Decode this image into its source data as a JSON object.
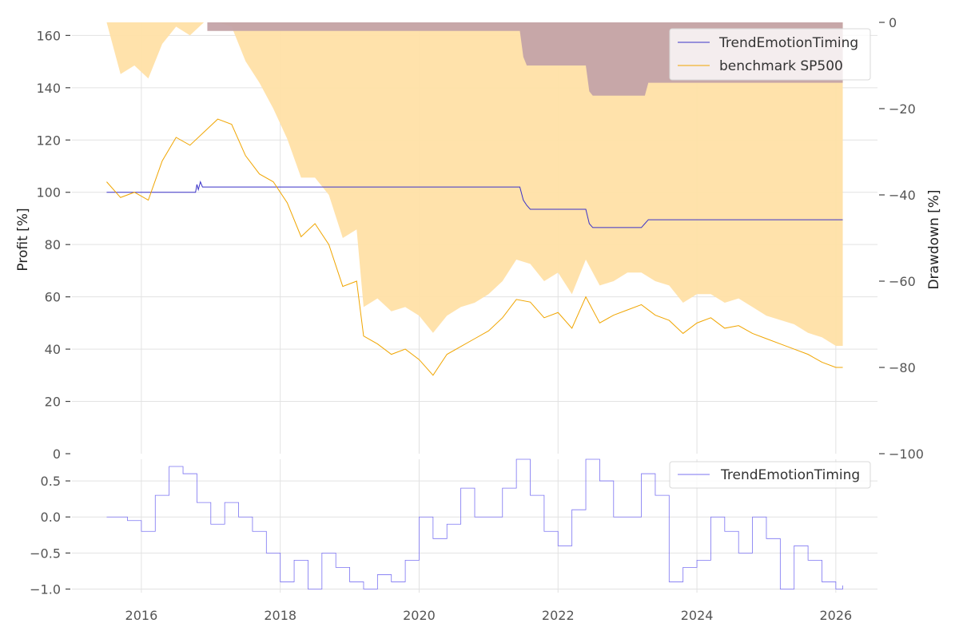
{
  "chart_data": [
    {
      "type": "line",
      "name": "top-panel",
      "xlabel": "",
      "ylabel": "Profit [%]",
      "ylabel_right": "Drawdown [%]",
      "ylim": [
        0,
        165
      ],
      "ylim_right": [
        -100,
        0
      ],
      "xlim": [
        2015.0,
        2026.6
      ],
      "grid": true,
      "legend_position": "top-right",
      "x_ticks": [
        2016,
        2018,
        2020,
        2022,
        2024,
        2026
      ],
      "x_tick_labels": [
        "2016",
        "2018",
        "2020",
        "2022",
        "2024",
        "2026"
      ],
      "y_ticks": [
        0,
        20,
        40,
        60,
        80,
        100,
        120,
        140,
        160
      ],
      "y_tick_labels": [
        "0",
        "20",
        "40",
        "60",
        "80",
        "100",
        "120",
        "140",
        "160"
      ],
      "y_right_ticks": [
        0,
        -20,
        -40,
        -60,
        -80,
        -100
      ],
      "y_right_tick_labels": [
        "0",
        "−20",
        "−40",
        "−60",
        "−80",
        "−100"
      ],
      "series": [
        {
          "name": "TrendEmotionTiming",
          "color": "#3a32c8",
          "x": [
            2015.5,
            2016.78,
            2016.8,
            2016.82,
            2016.85,
            2016.88,
            2021.45,
            2021.5,
            2021.55,
            2021.6,
            2022.4,
            2022.45,
            2022.5,
            2023.2,
            2023.25,
            2023.3,
            2026.1
          ],
          "y": [
            100,
            100,
            103,
            101,
            104,
            102,
            102,
            97,
            95,
            93.5,
            93.5,
            88,
            86.5,
            86.5,
            88,
            89.5,
            89.5
          ]
        },
        {
          "name": "benchmark SP500",
          "color": "#f0a500",
          "x": [
            2015.5,
            2015.7,
            2015.9,
            2016.1,
            2016.3,
            2016.5,
            2016.7,
            2016.9,
            2017.1,
            2017.3,
            2017.5,
            2017.7,
            2017.9,
            2018.1,
            2018.3,
            2018.5,
            2018.7,
            2018.9,
            2019.1,
            2019.2,
            2019.4,
            2019.6,
            2019.8,
            2020.0,
            2020.2,
            2020.4,
            2020.6,
            2020.8,
            2021.0,
            2021.2,
            2021.4,
            2021.6,
            2021.8,
            2022.0,
            2022.2,
            2022.4,
            2022.6,
            2022.8,
            2023.0,
            2023.2,
            2023.4,
            2023.6,
            2023.8,
            2024.0,
            2024.2,
            2024.4,
            2024.6,
            2024.8,
            2025.0,
            2025.2,
            2025.4,
            2025.6,
            2025.8,
            2026.0,
            2026.1
          ],
          "y": [
            104,
            98,
            100,
            97,
            112,
            121,
            118,
            123,
            128,
            126,
            114,
            107,
            104,
            96,
            83,
            88,
            80,
            64,
            66,
            45,
            42,
            38,
            40,
            36,
            30,
            38,
            41,
            44,
            47,
            52,
            59,
            58,
            52,
            54,
            48,
            60,
            50,
            53,
            55,
            57,
            53,
            51,
            46,
            50,
            52,
            48,
            49,
            46,
            44,
            42,
            40,
            38,
            35,
            33,
            33
          ]
        }
      ],
      "drawdown_areas": [
        {
          "name": "benchmark SP500 drawdown",
          "color": "#ffe0a6",
          "x": [
            2015.5,
            2015.7,
            2015.9,
            2016.1,
            2016.3,
            2016.5,
            2016.7,
            2016.9,
            2017.1,
            2017.3,
            2017.5,
            2017.7,
            2017.9,
            2018.1,
            2018.3,
            2018.5,
            2018.7,
            2018.9,
            2019.1,
            2019.2,
            2019.4,
            2019.6,
            2019.8,
            2020.0,
            2020.2,
            2020.4,
            2020.6,
            2020.8,
            2021.0,
            2021.2,
            2021.4,
            2021.6,
            2021.8,
            2022.0,
            2022.2,
            2022.4,
            2022.6,
            2022.8,
            2023.0,
            2023.2,
            2023.4,
            2023.6,
            2023.8,
            2024.0,
            2024.2,
            2024.4,
            2024.6,
            2024.8,
            2025.0,
            2025.2,
            2025.4,
            2025.6,
            2025.8,
            2026.0,
            2026.1
          ],
          "y": [
            0,
            -12,
            -10,
            -13,
            -5,
            -1,
            -3,
            0,
            0,
            -1,
            -9,
            -14,
            -20,
            -27,
            -36,
            -36,
            -40,
            -50,
            -48,
            -66,
            -64,
            -67,
            -66,
            -68,
            -72,
            -68,
            -66,
            -65,
            -63,
            -60,
            -55,
            -56,
            -60,
            -58,
            -63,
            -55,
            -61,
            -60,
            -58,
            -58,
            -60,
            -61,
            -65,
            -63,
            -63,
            -65,
            -64,
            -66,
            -68,
            -69,
            -70,
            -72,
            -73,
            -75,
            -75
          ]
        },
        {
          "name": "TrendEmotionTiming drawdown",
          "color": "#c4a3a8",
          "x": [
            2016.95,
            2021.45,
            2021.5,
            2021.55,
            2022.4,
            2022.45,
            2022.5,
            2023.25,
            2023.3,
            2026.1
          ],
          "y": [
            -2,
            -2,
            -8,
            -10,
            -10,
            -16,
            -17,
            -17,
            -14,
            -14
          ]
        }
      ]
    },
    {
      "type": "line",
      "name": "bottom-panel",
      "xlabel": "",
      "ylabel": "",
      "ylim": [
        -1.05,
        0.8
      ],
      "xlim": [
        2015.0,
        2026.6
      ],
      "grid": true,
      "legend_position": "top-right",
      "x_ticks": [
        2016,
        2018,
        2020,
        2022,
        2024,
        2026
      ],
      "y_ticks": [
        -1.0,
        -0.5,
        0.0,
        0.5
      ],
      "y_tick_labels": [
        "−1.0",
        "−0.5",
        "0.0",
        "0.5"
      ],
      "series": [
        {
          "name": "TrendEmotionTiming",
          "color": "#7b73f2",
          "x": [
            2015.5,
            2015.8,
            2016.0,
            2016.2,
            2016.4,
            2016.6,
            2016.8,
            2017.0,
            2017.2,
            2017.4,
            2017.6,
            2017.8,
            2018.0,
            2018.2,
            2018.4,
            2018.6,
            2018.8,
            2019.0,
            2019.2,
            2019.4,
            2019.6,
            2019.8,
            2020.0,
            2020.2,
            2020.4,
            2020.6,
            2020.8,
            2021.0,
            2021.2,
            2021.4,
            2021.6,
            2021.8,
            2022.0,
            2022.2,
            2022.4,
            2022.6,
            2022.8,
            2023.0,
            2023.2,
            2023.4,
            2023.6,
            2023.8,
            2024.0,
            2024.2,
            2024.4,
            2024.6,
            2024.8,
            2025.0,
            2025.2,
            2025.4,
            2025.6,
            2025.8,
            2026.0,
            2026.1
          ],
          "y": [
            0.0,
            -0.05,
            -0.2,
            0.3,
            0.7,
            0.6,
            0.2,
            -0.1,
            0.2,
            0.0,
            -0.2,
            -0.5,
            -0.9,
            -0.6,
            -1.0,
            -0.5,
            -0.7,
            -0.9,
            -1.0,
            -0.8,
            -0.9,
            -0.6,
            0.0,
            -0.3,
            -0.1,
            0.4,
            0.0,
            0.0,
            0.4,
            0.8,
            0.3,
            -0.2,
            -0.4,
            0.1,
            0.8,
            0.5,
            0.0,
            0.0,
            0.6,
            0.3,
            -0.9,
            -0.7,
            -0.6,
            0.0,
            -0.2,
            -0.5,
            0.0,
            -0.3,
            -1.0,
            -0.4,
            -0.6,
            -0.9,
            -1.0,
            -0.95
          ]
        }
      ]
    }
  ]
}
